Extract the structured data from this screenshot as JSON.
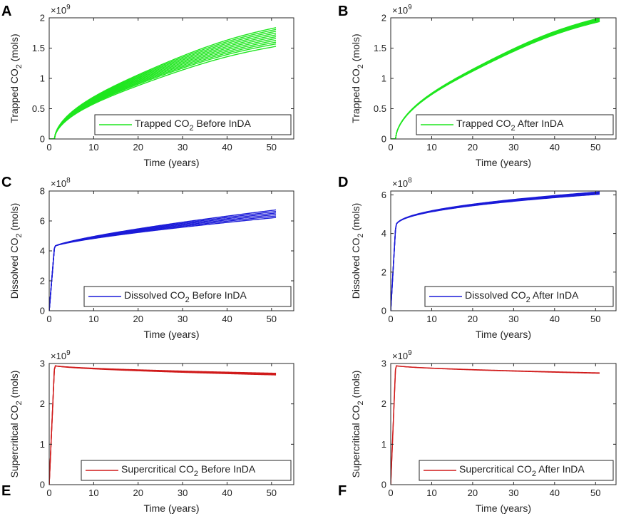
{
  "chart_data": [
    {
      "panel": "A",
      "type": "line",
      "series_color": "#1ee61e",
      "multiplier_base": "×10",
      "multiplier_exp": "9",
      "ylabel_main": "Trapped CO",
      "ylabel_sub": "2",
      "ylabel_unit": " (mols)",
      "xlabel": "Time (years)",
      "xlim": [
        0,
        55
      ],
      "ylim": [
        0,
        2
      ],
      "xticks": [
        0,
        10,
        20,
        30,
        40,
        50
      ],
      "yticks": [
        0,
        0.5,
        1,
        1.5,
        2
      ],
      "ytick_labels": [
        "0",
        "0.5",
        "1",
        "1.5",
        "2"
      ],
      "legend_pos": "bottom-right",
      "legend_main": "Trapped CO",
      "legend_sub": "2",
      "legend_rest": " Before InDA",
      "curve": {
        "kind": "trapped",
        "t0": 1.2,
        "ends": [
          1.53,
          1.57,
          1.6,
          1.63,
          1.66,
          1.69,
          1.72,
          1.75,
          1.78,
          1.81,
          1.84
        ]
      }
    },
    {
      "panel": "B",
      "type": "line",
      "series_color": "#1ee61e",
      "multiplier_base": "×10",
      "multiplier_exp": "9",
      "ylabel_main": "Trapped CO",
      "ylabel_sub": "2",
      "ylabel_unit": " (mols)",
      "xlabel": "Time (years)",
      "xlim": [
        0,
        55
      ],
      "ylim": [
        0,
        2
      ],
      "xticks": [
        0,
        10,
        20,
        30,
        40,
        50
      ],
      "yticks": [
        0,
        0.5,
        1,
        1.5,
        2
      ],
      "ytick_labels": [
        "0",
        "0.5",
        "1",
        "1.5",
        "2"
      ],
      "legend_pos": "bottom-right",
      "legend_main": "Trapped CO",
      "legend_sub": "2",
      "legend_rest": " After InDA",
      "curve": {
        "kind": "trapped",
        "t0": 1.2,
        "ends": [
          1.94,
          1.95,
          1.96,
          1.97,
          1.98,
          1.99,
          2.0
        ]
      }
    },
    {
      "panel": "C",
      "type": "line",
      "series_color": "#1a1ad8",
      "multiplier_base": "×10",
      "multiplier_exp": "8",
      "ylabel_main": "Dissolved CO",
      "ylabel_sub": "2",
      "ylabel_unit": " (mols)",
      "xlabel": "Time (years)",
      "xlim": [
        0,
        55
      ],
      "ylim": [
        0,
        8
      ],
      "xticks": [
        0,
        10,
        20,
        30,
        40,
        50
      ],
      "yticks": [
        0,
        2,
        4,
        6,
        8
      ],
      "ytick_labels": [
        "0",
        "2",
        "4",
        "6",
        "8"
      ],
      "legend_pos": "bottom-right",
      "legend_main": "Dissolved CO",
      "legend_sub": "2",
      "legend_rest": " Before InDA",
      "curve": {
        "kind": "dissolved",
        "t_knee": 1.2,
        "knee": 4.3,
        "ends": [
          6.2,
          6.3,
          6.4,
          6.5,
          6.6,
          6.7
        ]
      }
    },
    {
      "panel": "D",
      "type": "line",
      "series_color": "#1a1ad8",
      "multiplier_base": "×10",
      "multiplier_exp": "8",
      "ylabel_main": "Dissolved CO",
      "ylabel_sub": "2",
      "ylabel_unit": " (mols)",
      "xlabel": "Time (years)",
      "xlim": [
        0,
        55
      ],
      "ylim": [
        0,
        6.2
      ],
      "xticks": [
        0,
        10,
        20,
        30,
        40,
        50
      ],
      "yticks": [
        0,
        2,
        4,
        6
      ],
      "ytick_labels": [
        "0",
        "2",
        "4",
        "6"
      ],
      "legend_pos": "bottom-right",
      "legend_main": "Dissolved CO",
      "legend_sub": "2",
      "legend_rest": " After InDA",
      "curve": {
        "kind": "dissolved_after",
        "t_knee": 1.2,
        "knee": 4.35,
        "ends": [
          6.02,
          6.06,
          6.1,
          6.14
        ]
      }
    },
    {
      "panel": "E",
      "type": "line",
      "series_color": "#d01a1a",
      "multiplier_base": "×10",
      "multiplier_exp": "9",
      "ylabel_main": "Supercritical CO",
      "ylabel_sub": "2",
      "ylabel_unit": " (mols)",
      "xlabel": "Time (years)",
      "xlim": [
        0,
        55
      ],
      "ylim": [
        0,
        3
      ],
      "xticks": [
        0,
        10,
        20,
        30,
        40,
        50
      ],
      "yticks": [
        0,
        1,
        2,
        3
      ],
      "ytick_labels": [
        "0",
        "1",
        "2",
        "3"
      ],
      "legend_pos": "bottom-right",
      "legend_main": "Supercritical CO",
      "legend_sub": "2",
      "legend_rest": " Before InDA",
      "curve": {
        "kind": "supercritical",
        "t_peak": 1.2,
        "peak": 2.95,
        "ends": [
          2.72,
          2.74,
          2.76
        ]
      }
    },
    {
      "panel": "F",
      "type": "line",
      "series_color": "#d01a1a",
      "multiplier_base": "×10",
      "multiplier_exp": "9",
      "ylabel_main": "Supercritical CO",
      "ylabel_sub": "2",
      "ylabel_unit": " (mols)",
      "xlabel": "Time (years)",
      "xlim": [
        0,
        55
      ],
      "ylim": [
        0,
        3
      ],
      "xticks": [
        0,
        10,
        20,
        30,
        40,
        50
      ],
      "yticks": [
        0,
        1,
        2,
        3
      ],
      "ytick_labels": [
        "0",
        "1",
        "2",
        "3"
      ],
      "legend_pos": "bottom-right",
      "legend_main": "Supercritical CO",
      "legend_sub": "2",
      "legend_rest": " After InDA",
      "curve": {
        "kind": "supercritical",
        "t_peak": 1.2,
        "peak": 2.95,
        "ends": [
          2.76,
          2.77
        ]
      }
    }
  ]
}
